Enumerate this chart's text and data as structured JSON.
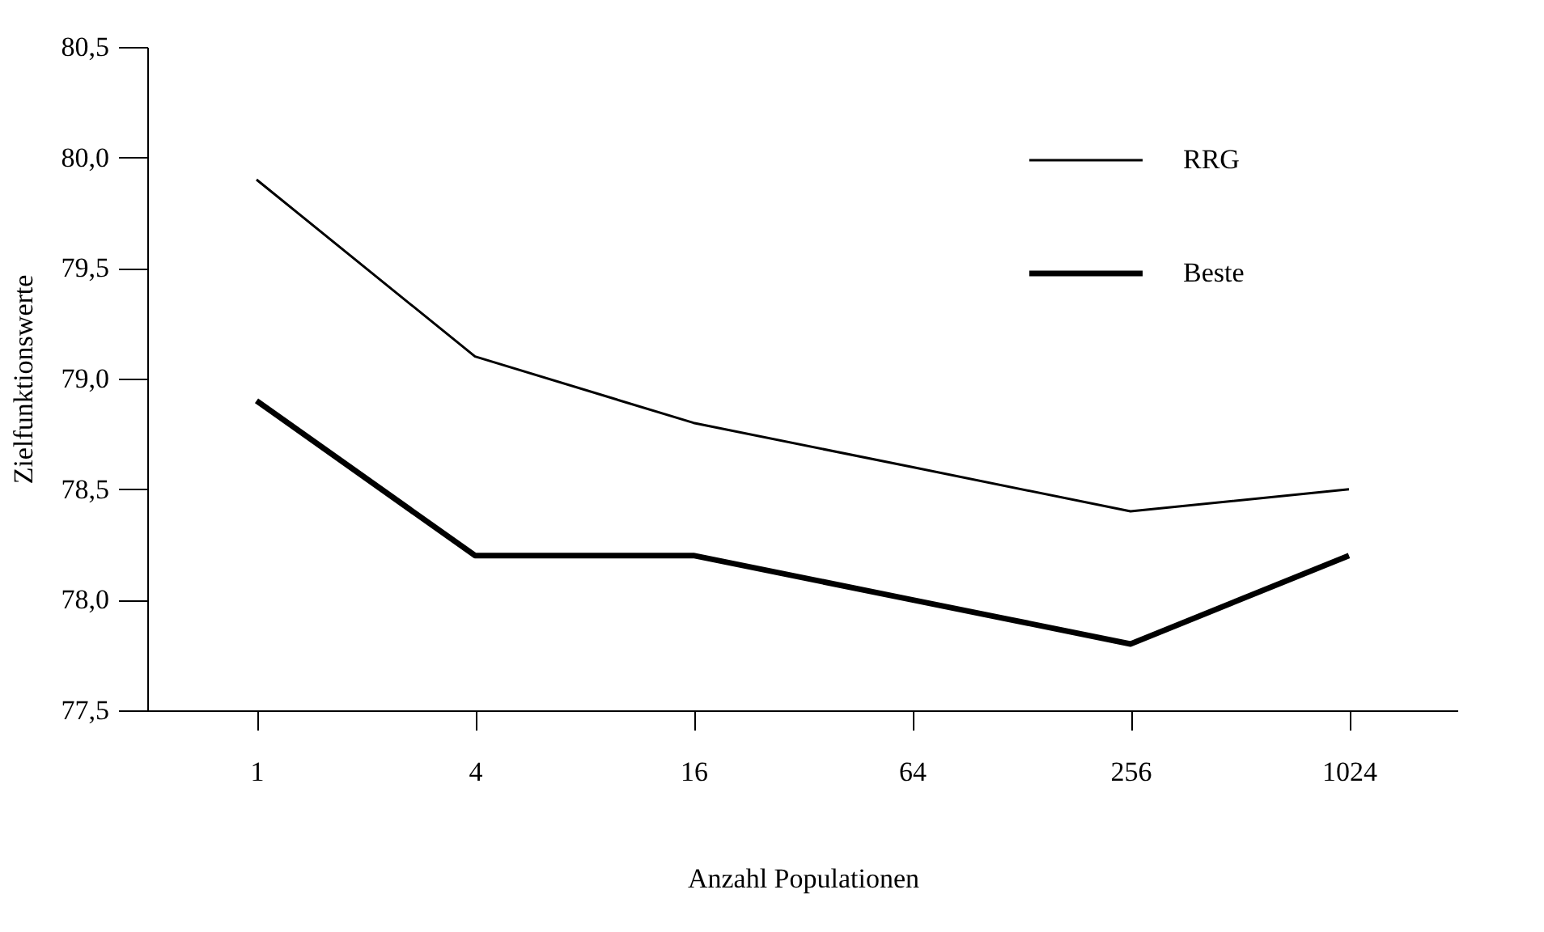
{
  "chart_data": {
    "type": "line",
    "xlabel": "Anzahl Populationen",
    "ylabel": "Zielfunktionswerte",
    "categories": [
      "1",
      "4",
      "16",
      "64",
      "256",
      "1024"
    ],
    "series": [
      {
        "name": "RRG",
        "color": "#000000",
        "values": [
          79.9,
          79.1,
          78.8,
          78.6,
          78.4,
          78.5
        ]
      },
      {
        "name": "Beste",
        "color": "#000000",
        "values": [
          78.9,
          78.2,
          78.2,
          78.0,
          77.8,
          78.2
        ]
      }
    ],
    "ylim": [
      77.5,
      80.5
    ],
    "yticks": [
      {
        "value": 77.5,
        "label": "77,5"
      },
      {
        "value": 78.0,
        "label": "78,0"
      },
      {
        "value": 78.5,
        "label": "78,5"
      },
      {
        "value": 79.0,
        "label": "79,0"
      },
      {
        "value": 79.5,
        "label": "79,5"
      },
      {
        "value": 80.0,
        "label": "80,0"
      },
      {
        "value": 80.5,
        "label": "80,5"
      }
    ],
    "grid": false,
    "legend": "top right",
    "marker": "none",
    "line_style": "solid"
  }
}
